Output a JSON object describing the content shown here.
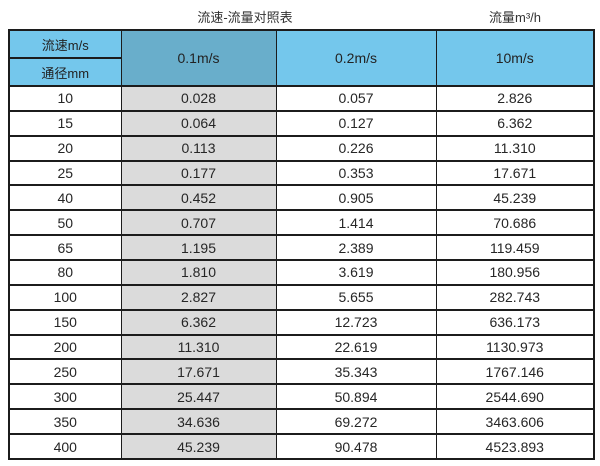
{
  "titles": {
    "main": "流速-流量对照表",
    "unit": "流量m³/h"
  },
  "colors": {
    "header_blue": "#74c7ec",
    "header_blue_dark": "#69aecb",
    "highlight_column_gray": "#dbdbdb",
    "border": "#1c1c1c",
    "text": "#2e2e2e"
  },
  "chart_data": {
    "type": "table",
    "title": "流速-流量对照表",
    "right_label": "流量m³/h",
    "corner_top": "流速m/s",
    "corner_bottom": "通径mm",
    "columns": [
      "0.1m/s",
      "0.2m/s",
      "10m/s"
    ],
    "rows": [
      [
        "10",
        "0.028",
        "0.057",
        "2.826"
      ],
      [
        "15",
        "0.064",
        "0.127",
        "6.362"
      ],
      [
        "20",
        "0.113",
        "0.226",
        "11.310"
      ],
      [
        "25",
        "0.177",
        "0.353",
        "17.671"
      ],
      [
        "40",
        "0.452",
        "0.905",
        "45.239"
      ],
      [
        "50",
        "0.707",
        "1.414",
        "70.686"
      ],
      [
        "65",
        "1.195",
        "2.389",
        "119.459"
      ],
      [
        "80",
        "1.810",
        "3.619",
        "180.956"
      ],
      [
        "100",
        "2.827",
        "5.655",
        "282.743"
      ],
      [
        "150",
        "6.362",
        "12.723",
        "636.173"
      ],
      [
        "200",
        "11.310",
        "22.619",
        "1130.973"
      ],
      [
        "250",
        "17.671",
        "35.343",
        "1767.146"
      ],
      [
        "300",
        "25.447",
        "50.894",
        "2544.690"
      ],
      [
        "350",
        "34.636",
        "69.272",
        "3463.606"
      ],
      [
        "400",
        "45.239",
        "90.478",
        "4523.893"
      ]
    ]
  }
}
